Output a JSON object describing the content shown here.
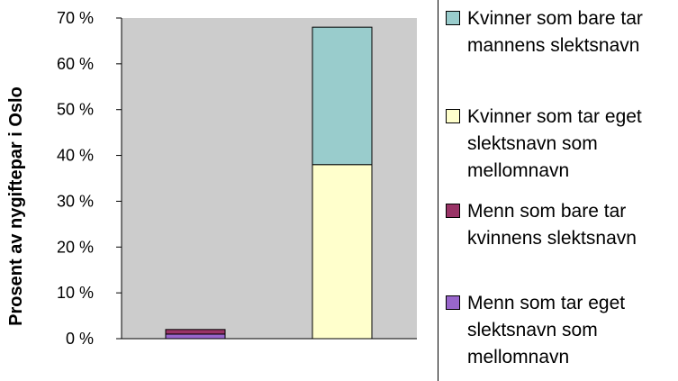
{
  "chart_data": {
    "type": "bar",
    "stacked": true,
    "ylabel": "Prosent av nygiftepar i Oslo",
    "ylim": [
      0,
      70
    ],
    "yticks": [
      "0 %",
      "10 %",
      "20 %",
      "30 %",
      "40 %",
      "50 %",
      "60 %",
      "70 %"
    ],
    "ytick_values": [
      0,
      10,
      20,
      30,
      40,
      50,
      60,
      70
    ],
    "categories": [
      "",
      ""
    ],
    "plot_background": "#cccccc",
    "legend_position": "right",
    "series": [
      {
        "name": "Menn som tar eget slektsnavn som mellomnavn",
        "color": "#9966cc",
        "values": [
          1.0,
          0
        ]
      },
      {
        "name": "Menn som bare tar kvinnens slektsnavn",
        "color": "#993366",
        "values": [
          1.0,
          0
        ]
      },
      {
        "name": "Kvinner som tar eget slektsnavn som mellomnavn",
        "color": "#ffffcc",
        "values": [
          0,
          38.0
        ]
      },
      {
        "name": "Kvinner som bare tar mannens slektsnavn",
        "color": "#99cccc",
        "values": [
          0,
          30.0
        ]
      }
    ],
    "legend_order": [
      3,
      2,
      1,
      0
    ]
  }
}
